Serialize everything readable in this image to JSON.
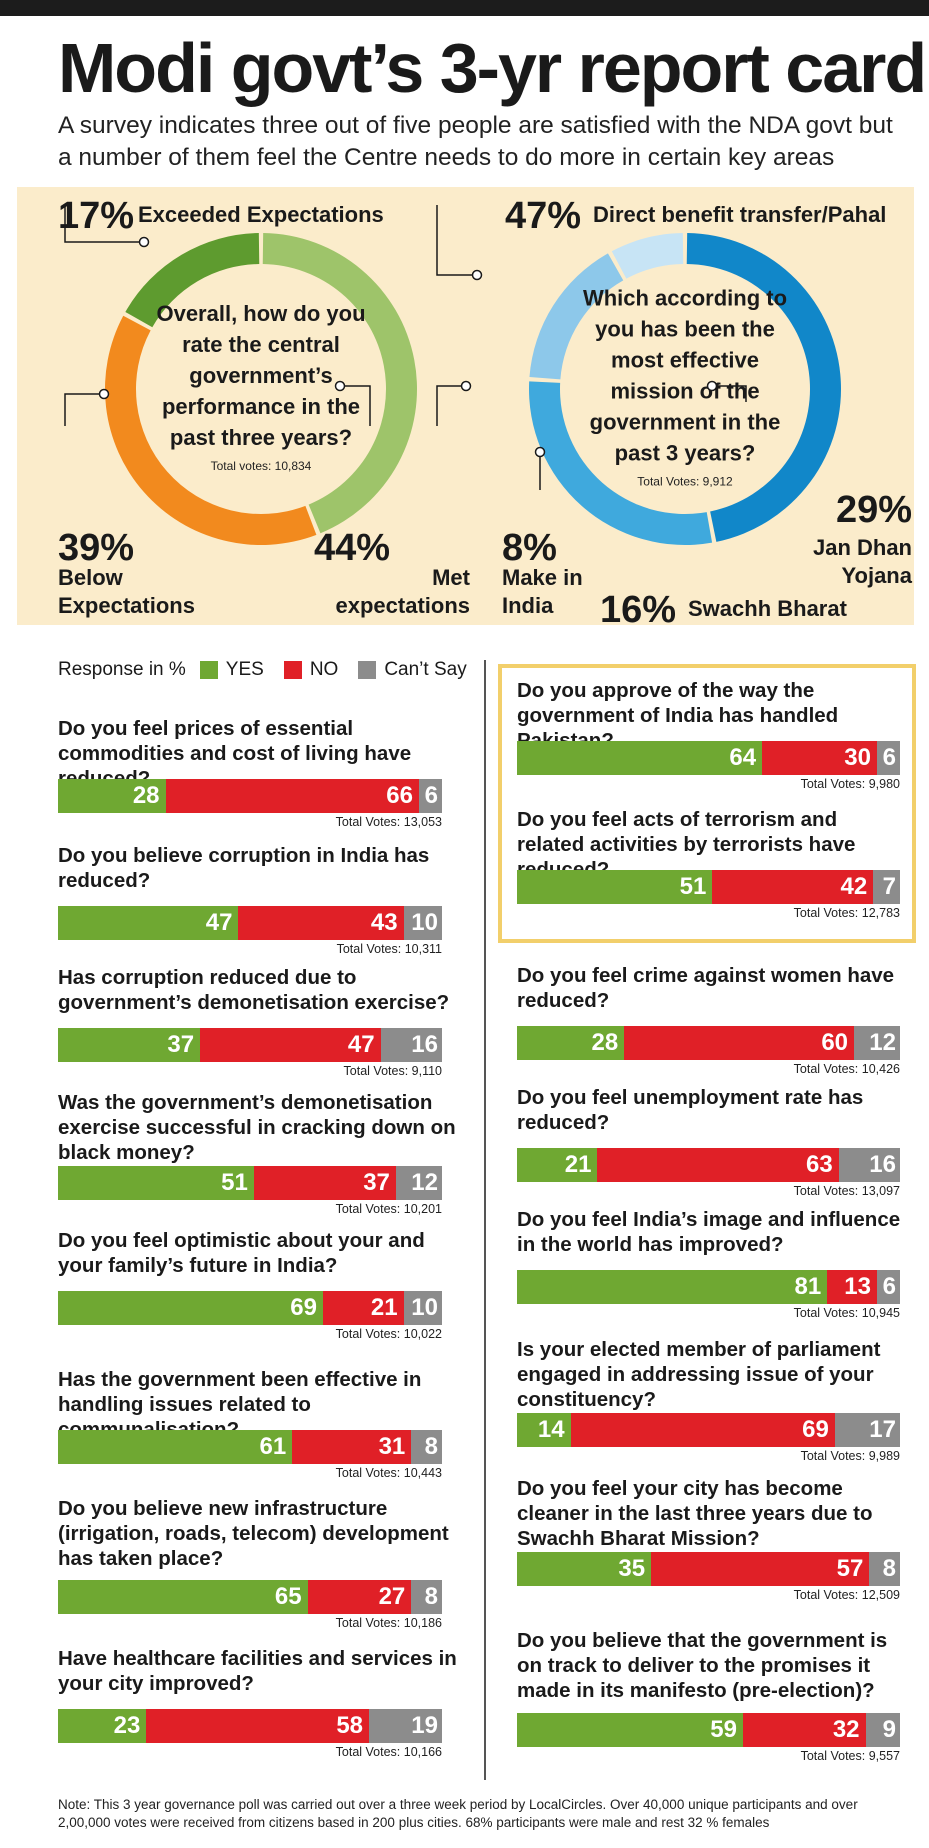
{
  "title": "Modi govt’s 3-yr report card",
  "subtitle": "A survey indicates three out of five people are satisfied with the NDA govt but a number of them feel the Centre needs to do more in certain key areas",
  "colors": {
    "yes": "#6fa832",
    "no": "#e02027",
    "cant_say": "#8c8c8c",
    "panel": "#fbeccb",
    "highlight": "#f2cf6b"
  },
  "legend": {
    "title": "Response in %",
    "yes": "YES",
    "no": "NO",
    "cant_say": "Can’t Say"
  },
  "chart_data": [
    {
      "type": "pie",
      "center_text": "Overall, how do you rate the central government’s performance in the past three years?",
      "votes": "Total votes: 10,834",
      "slices": [
        {
          "label": "Met expectations",
          "value": 44,
          "value_text": "44%",
          "color": "#9ec46a"
        },
        {
          "label": "Below Expectations",
          "value": 39,
          "value_text": "39%",
          "color": "#f28a1e"
        },
        {
          "label": "Exceeded Expectations",
          "value": 17,
          "value_text": "17%",
          "color": "#5e9b2f"
        }
      ]
    },
    {
      "type": "pie",
      "center_text": "Which according to you has been the most effective mission of the government in the past 3 years?",
      "votes": "Total Votes: 9,912",
      "slices": [
        {
          "label": "Direct benefit transfer/Pahal",
          "value": 47,
          "value_text": "47%",
          "color": "#1187c9"
        },
        {
          "label": "Jan Dhan Yojana",
          "value": 29,
          "value_text": "29%",
          "color": "#3fa9dd"
        },
        {
          "label": "Swachh Bharat",
          "value": 16,
          "value_text": "16%",
          "color": "#8dc8ea"
        },
        {
          "label": "Make in India",
          "value": 8,
          "value_text": "8%",
          "color": "#c7e4f5"
        }
      ]
    },
    {
      "type": "bar",
      "stacked": true,
      "series_names": [
        "YES",
        "NO",
        "Can’t Say"
      ],
      "left_column": [
        {
          "question": "Do you feel prices of essential commodities and cost of living have reduced?",
          "values": [
            28,
            66,
            6
          ],
          "votes": "Total Votes: 13,053"
        },
        {
          "question": "Do you believe corruption in India has reduced?",
          "values": [
            47,
            43,
            10
          ],
          "votes": "Total Votes: 10,311"
        },
        {
          "question": "Has corruption reduced due to government’s demonetisation exercise?",
          "values": [
            37,
            47,
            16
          ],
          "votes": "Total Votes: 9,110"
        },
        {
          "question": "Was the government’s demonetisation exercise successful in cracking down on black money?",
          "values": [
            51,
            37,
            12
          ],
          "votes": "Total Votes: 10,201"
        },
        {
          "question": "Do you feel optimistic about your and your family’s future in India?",
          "values": [
            69,
            21,
            10
          ],
          "votes": "Total Votes: 10,022"
        },
        {
          "question": "Has the government been effective in handling issues related to communalisation?",
          "values": [
            61,
            31,
            8
          ],
          "votes": "Total Votes: 10,443"
        },
        {
          "question": "Do you believe new infrastructure (irrigation, roads, telecom) development has taken place?",
          "values": [
            65,
            27,
            8
          ],
          "votes": "Total Votes: 10,186"
        },
        {
          "question": "Have healthcare facilities and services in your city improved?",
          "values": [
            23,
            58,
            19
          ],
          "votes": "Total Votes: 10,166"
        }
      ],
      "right_column": [
        {
          "question": "Do you approve of the way the government of India has handled Pakistan?",
          "values": [
            64,
            30,
            6
          ],
          "votes": "Total Votes: 9,980"
        },
        {
          "question": "Do you feel acts of terrorism and related activities by terrorists have reduced?",
          "values": [
            51,
            42,
            7
          ],
          "votes": "Total Votes: 12,783"
        },
        {
          "question": "Do you feel crime against women have reduced?",
          "values": [
            28,
            60,
            12
          ],
          "votes": "Total Votes: 10,426"
        },
        {
          "question": "Do you feel unemployment rate has reduced?",
          "values": [
            21,
            63,
            16
          ],
          "votes": "Total Votes: 13,097"
        },
        {
          "question": "Do you feel India’s image and influence in the world has improved?",
          "values": [
            81,
            13,
            6
          ],
          "votes": "Total Votes: 10,945"
        },
        {
          "question": "Is your elected member of parliament engaged in addressing issue of your constituency?",
          "values": [
            14,
            69,
            17
          ],
          "votes": "Total Votes: 9,989"
        },
        {
          "question": "Do you feel your city has become cleaner in the last three years due to Swachh Bharat Mission?",
          "values": [
            35,
            57,
            8
          ],
          "votes": "Total Votes: 12,509"
        },
        {
          "question": "Do you believe that the government is on track to deliver to the promises it made in its manifesto (pre-election)?",
          "values": [
            59,
            32,
            9
          ],
          "votes": "Total Votes: 9,557"
        }
      ]
    }
  ],
  "note": "Note: This 3 year governance poll was carried out over a three week period by LocalCircles. Over 40,000 unique participants and over 2,00,000 votes were received from citizens based in 200 plus cities. 68% participants were male and rest 32 % females"
}
